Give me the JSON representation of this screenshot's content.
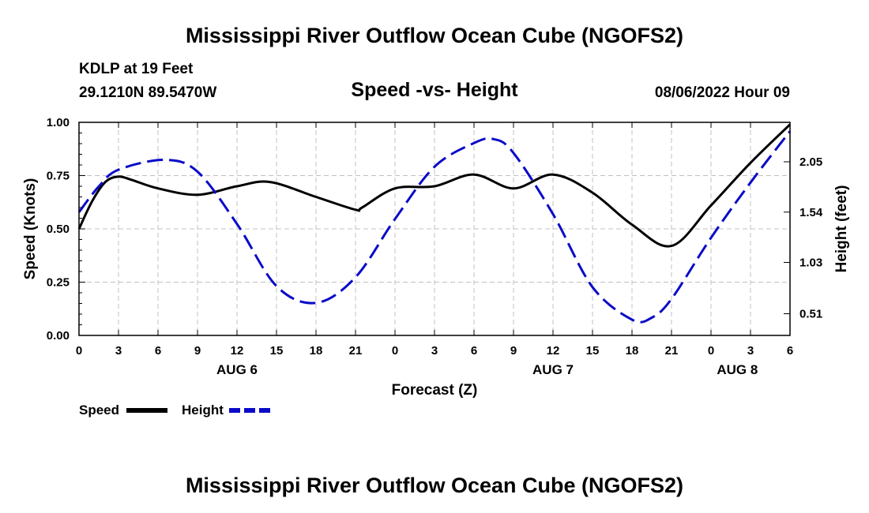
{
  "header": {
    "title": "Mississippi River Outflow Ocean Cube (NGOFS2)",
    "station": "KDLP at 19 Feet",
    "location": "29.1210N  89.5470W",
    "datetime": "08/06/2022 Hour 09",
    "bottom_title": "Mississippi River Outflow Ocean Cube (NGOFS2)"
  },
  "chart_data": {
    "type": "line",
    "title": "Speed -vs- Height",
    "xlabel": "Forecast (Z)",
    "ylabel": "Speed (Knots)",
    "y2label": "Height (feet)",
    "x_range_hours": [
      0,
      54
    ],
    "ylim": [
      0,
      1
    ],
    "y_ticks": [
      "0.00",
      "0.25",
      "0.50",
      "0.75",
      "1.00"
    ],
    "y2lim": [
      0.29,
      2.45
    ],
    "y2_ticks": [
      "0.51",
      "1.03",
      "1.54",
      "2.05"
    ],
    "x_tick_labels": [
      "0",
      "3",
      "6",
      "9",
      "12",
      "15",
      "18",
      "21",
      "0",
      "3",
      "6",
      "9",
      "12",
      "15",
      "18",
      "21",
      "0",
      "3",
      "6"
    ],
    "date_labels": [
      {
        "label": "AUG 6",
        "hour": 12
      },
      {
        "label": "AUG 7",
        "hour": 36
      },
      {
        "label": "AUG 8",
        "hour": 50
      }
    ],
    "grid": true,
    "legend": [
      {
        "name": "Speed",
        "color": "#000000",
        "style": "solid"
      },
      {
        "name": "Height",
        "color": "#0a0ac8",
        "style": "dashed"
      }
    ],
    "series": [
      {
        "name": "Speed",
        "axis": "left",
        "color": "#000000",
        "x": [
          0,
          1,
          2,
          3,
          4,
          6,
          9,
          12,
          14.5,
          18,
          21,
          21.5,
          24,
          27,
          30,
          33,
          36,
          39,
          42,
          45,
          48,
          51,
          54
        ],
        "values": [
          0.5,
          0.63,
          0.72,
          0.745,
          0.73,
          0.69,
          0.66,
          0.7,
          0.72,
          0.65,
          0.59,
          0.6,
          0.69,
          0.7,
          0.755,
          0.69,
          0.755,
          0.67,
          0.52,
          0.42,
          0.61,
          0.81,
          0.99
        ]
      },
      {
        "name": "Height",
        "axis": "right",
        "color": "#0a0ac8",
        "x": [
          0,
          1.5,
          3,
          6.5,
          9,
          12,
          15,
          18,
          21,
          24,
          27,
          30,
          31.5,
          33,
          36,
          39,
          42,
          43.5,
          45,
          48,
          51,
          54
        ],
        "values": [
          1.54,
          1.8,
          1.97,
          2.07,
          1.95,
          1.42,
          0.79,
          0.62,
          0.88,
          1.47,
          2.0,
          2.24,
          2.28,
          2.14,
          1.52,
          0.78,
          0.45,
          0.47,
          0.66,
          1.28,
          1.84,
          2.36
        ]
      }
    ]
  }
}
